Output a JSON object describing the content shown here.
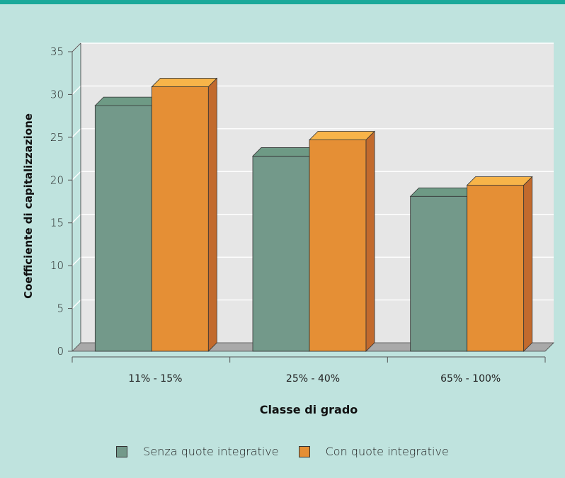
{
  "chart_data": {
    "type": "bar",
    "categories": [
      "11% - 15%",
      "25% - 40%",
      "65% - 100%"
    ],
    "series": [
      {
        "name": "Senza quote integrative",
        "values": [
          28.7,
          22.8,
          18.1
        ]
      },
      {
        "name": "Con quote integrative",
        "values": [
          30.9,
          24.7,
          19.4
        ]
      }
    ],
    "xlabel": "Classe di grado",
    "ylabel": "Coefficiente di capitalizzazione",
    "ylim": [
      0,
      35
    ],
    "yticks": [
      0,
      5,
      10,
      15,
      20,
      25,
      30,
      35
    ],
    "grid": true,
    "legend_position": "bottom",
    "colors": {
      "series": [
        "#73998a",
        "#e58f35"
      ],
      "series_top": [
        "#6e9a85",
        "#f7b449"
      ],
      "series_side": [
        "#4e7466",
        "#c26a2d"
      ],
      "background": "#bfe3de",
      "plot_background": "#e6e6e6",
      "accent_top": "#1aa99a"
    }
  }
}
